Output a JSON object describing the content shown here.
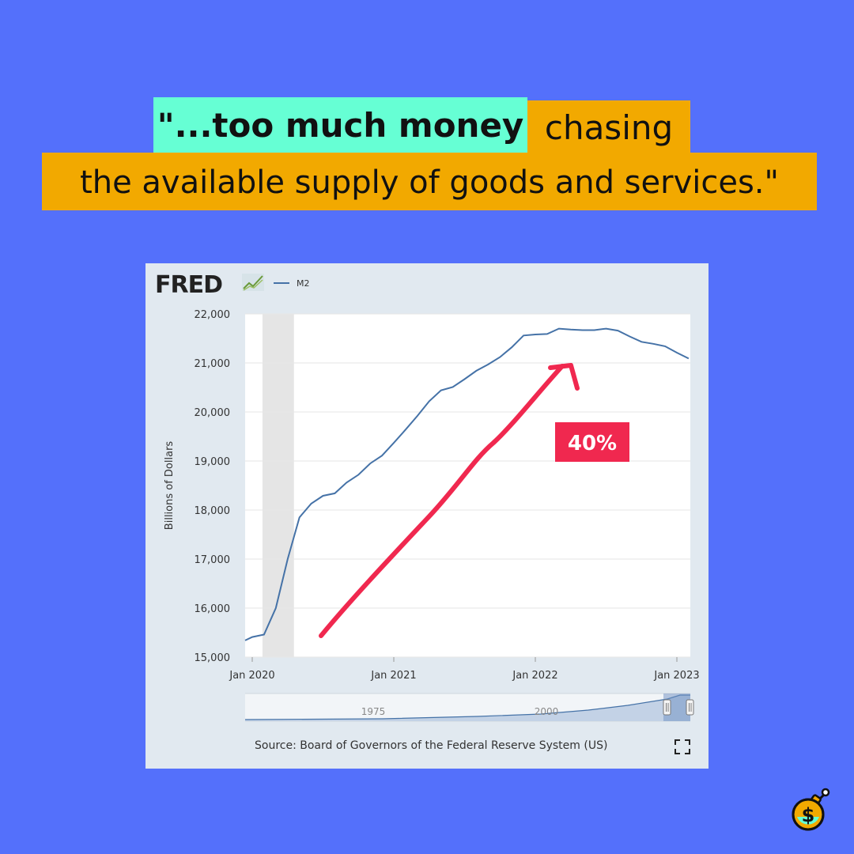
{
  "headline": {
    "part1": "\"...too much money",
    "part2": "chasing",
    "part3": "the available supply of goods and services.\""
  },
  "chart_data": {
    "type": "line",
    "logo": "FRED",
    "legend": [
      "M2"
    ],
    "ylabel": "Billions of Dollars",
    "ylim": [
      15000,
      22000
    ],
    "yticks": [
      15000,
      16000,
      17000,
      18000,
      19000,
      20000,
      21000,
      22000
    ],
    "ytick_labels": [
      "15,000",
      "16,000",
      "17,000",
      "18,000",
      "19,000",
      "20,000",
      "21,000",
      "22,000"
    ],
    "xticks": [
      "2020-01",
      "2021-01",
      "2022-01",
      "2023-01"
    ],
    "xtick_labels": [
      "Jan 2020",
      "Jan 2021",
      "Jan 2022",
      "Jan 2023"
    ],
    "recession_shading": [
      "2020-02",
      "2020-04"
    ],
    "series": [
      {
        "name": "M2",
        "x": [
          "2019-12",
          "2020-01",
          "2020-02",
          "2020-03",
          "2020-04",
          "2020-05",
          "2020-06",
          "2020-07",
          "2020-08",
          "2020-09",
          "2020-10",
          "2020-11",
          "2020-12",
          "2021-01",
          "2021-02",
          "2021-03",
          "2021-04",
          "2021-05",
          "2021-06",
          "2021-07",
          "2021-08",
          "2021-09",
          "2021-10",
          "2021-11",
          "2021-12",
          "2022-01",
          "2022-02",
          "2022-03",
          "2022-04",
          "2022-05",
          "2022-06",
          "2022-07",
          "2022-08",
          "2022-09",
          "2022-10",
          "2022-11",
          "2022-12",
          "2023-01",
          "2023-02"
        ],
        "values": [
          15340,
          15410,
          15460,
          16000,
          17000,
          17850,
          18130,
          18290,
          18340,
          18560,
          18720,
          18950,
          19110,
          19370,
          19640,
          19920,
          20220,
          20440,
          20510,
          20670,
          20840,
          20970,
          21120,
          21320,
          21560,
          21580,
          21590,
          21700,
          21680,
          21670,
          21670,
          21700,
          21660,
          21540,
          21430,
          21390,
          21340,
          21210,
          21090
        ]
      }
    ],
    "annotation": "40%",
    "navigator_labels": [
      "1975",
      "2000"
    ],
    "source": "Source: Board of Governors of the Federal Reserve System (US)"
  }
}
